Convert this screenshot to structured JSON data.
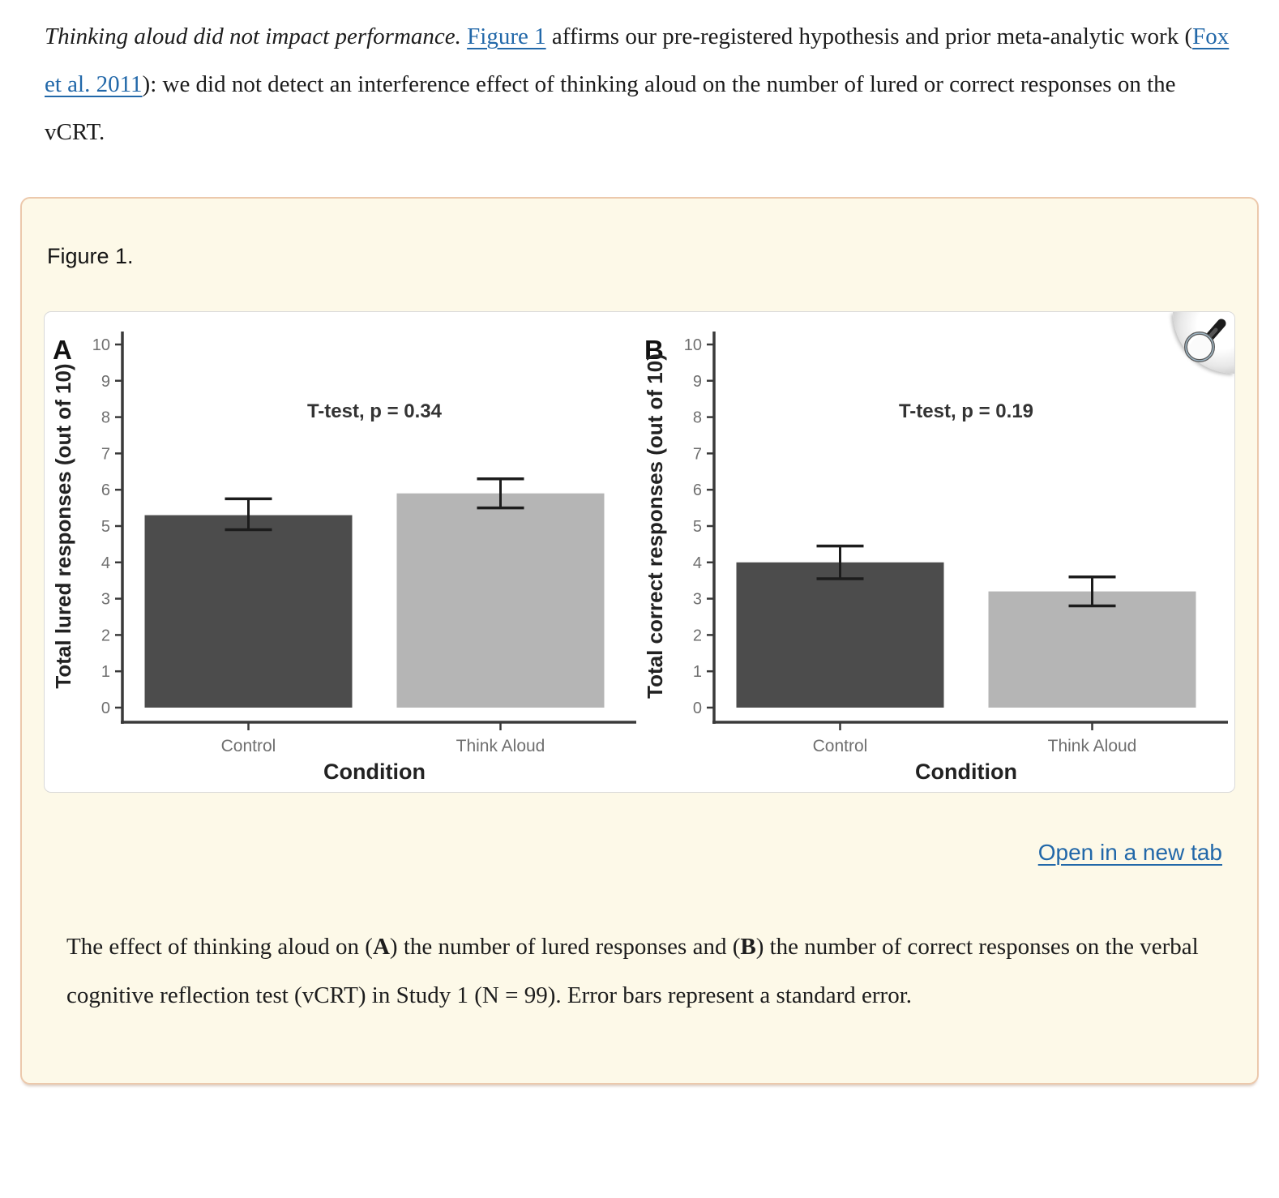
{
  "page": {
    "intro_paragraph": {
      "segments": [
        {
          "text": "Thinking aloud did not impact performance.",
          "style": "italic"
        },
        {
          "text": " ",
          "style": "normal"
        },
        {
          "text": "Figure 1",
          "style": "link",
          "name": "figure-1-link"
        },
        {
          "text": " affirms our pre-registered hypothesis and prior meta-analytic work (",
          "style": "normal"
        },
        {
          "text": "Fox et al. 2011",
          "style": "link",
          "name": "fox-2011-citation-link"
        },
        {
          "text": "): we did not detect an interference effect of thinking aloud on the number of lured or correct responses on the vCRT.",
          "style": "normal"
        }
      ]
    }
  },
  "figure_box": {
    "label": "Figure 1.",
    "open_link": "Open in a new tab",
    "caption": {
      "segments": [
        {
          "text": "The effect of thinking aloud on (",
          "style": "normal"
        },
        {
          "text": "A",
          "style": "bold"
        },
        {
          "text": ") the number of lured responses and (",
          "style": "normal"
        },
        {
          "text": "B",
          "style": "bold"
        },
        {
          "text": ") the number of correct responses on the verbal cognitive reflection test (vCRT) in Study 1 (N = 99). Error bars represent a standard error.",
          "style": "normal"
        }
      ]
    }
  },
  "icons": {
    "figure_zoom": "magnifier-icon"
  },
  "colors": {
    "link": "#2268a9",
    "box_bg": "#fdf9e8",
    "box_border": "#ecc9ac",
    "axis": "#3a3a3a",
    "tick_label": "#6f6f6f",
    "axis_title": "#222222",
    "annotation": "#333333",
    "error_bar": "#1c1c1c",
    "bar_dark": "#4c4c4c",
    "bar_light": "#b5b5b5"
  },
  "chart_data": [
    {
      "type": "bar",
      "panel_label": "A",
      "title": "T-test, p = 0.34",
      "categories": [
        "Control",
        "Think Aloud"
      ],
      "values": [
        5.3,
        5.9
      ],
      "error_low": [
        4.9,
        5.5
      ],
      "error_high": [
        5.75,
        6.3
      ],
      "xlabel": "Condition",
      "ylabel": "Total lured responses (out of 10)",
      "ylim": [
        0,
        10
      ],
      "ytick_step": 1,
      "grid": false,
      "legend": "none",
      "bar_colors": [
        "#4c4c4c",
        "#b5b5b5"
      ]
    },
    {
      "type": "bar",
      "panel_label": "B",
      "title": "T-test, p = 0.19",
      "categories": [
        "Control",
        "Think Aloud"
      ],
      "values": [
        4.0,
        3.2
      ],
      "error_low": [
        3.55,
        2.8
      ],
      "error_high": [
        4.45,
        3.6
      ],
      "xlabel": "Condition",
      "ylabel": "Total correct responses (out of 10)",
      "ylim": [
        0,
        10
      ],
      "ytick_step": 1,
      "grid": false,
      "legend": "none",
      "bar_colors": [
        "#4c4c4c",
        "#b5b5b5"
      ]
    }
  ]
}
